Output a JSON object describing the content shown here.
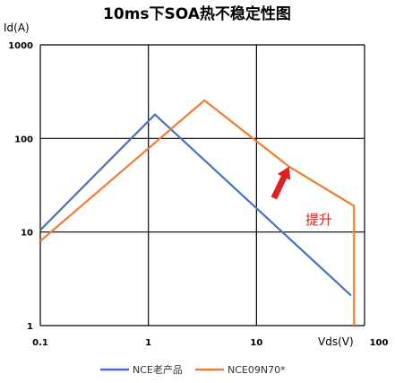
{
  "chart_data": {
    "type": "line",
    "title": "10ms下SOA热不稳定性图",
    "xlabel": "Vds(V)",
    "ylabel": "Id(A)",
    "x_scale": "log",
    "y_scale": "log",
    "xlim": [
      0.1,
      100
    ],
    "ylim": [
      1,
      1000
    ],
    "x_ticks": [
      "0.1",
      "1",
      "10",
      "100"
    ],
    "y_ticks": [
      "1",
      "10",
      "100",
      "1000"
    ],
    "grid": true,
    "legend_position": "bottom",
    "series": [
      {
        "name": "NCE老产品",
        "color": "#4472c4",
        "points": [
          [
            0.1,
            10.5
          ],
          [
            1.15,
            180
          ],
          [
            75,
            2.1
          ]
        ]
      },
      {
        "name": "NCE09N70*",
        "color": "#ed7d31",
        "points": [
          [
            0.1,
            8
          ],
          [
            3.3,
            255
          ],
          [
            20,
            50
          ],
          [
            80,
            19
          ],
          [
            80,
            1
          ]
        ]
      }
    ],
    "annotation": {
      "text": "提升",
      "arrow_color": "#e02020",
      "arrow_from": [
        14.5,
        23
      ],
      "arrow_to": [
        20,
        50
      ]
    }
  }
}
